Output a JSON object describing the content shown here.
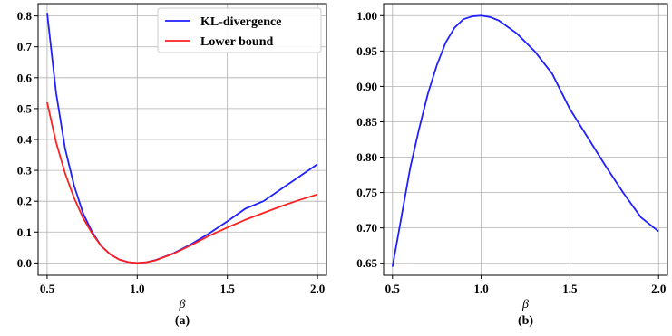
{
  "chart_data": [
    {
      "type": "line",
      "caption": "(a)",
      "xlabel": "β",
      "ylabel": "",
      "xlim": [
        0.45,
        2.05
      ],
      "ylim": [
        -0.04,
        0.84
      ],
      "xticks": [
        "0.5",
        "1.0",
        "1.5",
        "2.0"
      ],
      "yticks": [
        "0.0",
        "0.1",
        "0.2",
        "0.3",
        "0.4",
        "0.5",
        "0.6",
        "0.7",
        "0.8"
      ],
      "grid": true,
      "legend_position": "top-right",
      "x": [
        0.5,
        0.55,
        0.6,
        0.65,
        0.7,
        0.75,
        0.8,
        0.85,
        0.9,
        0.95,
        1.0,
        1.05,
        1.1,
        1.2,
        1.3,
        1.4,
        1.5,
        1.6,
        1.7,
        1.8,
        1.9,
        2.0
      ],
      "series": [
        {
          "name": "KL-divergence",
          "color": "#1f1fff",
          "values": [
            0.81,
            0.55,
            0.37,
            0.25,
            0.16,
            0.1,
            0.055,
            0.028,
            0.011,
            0.0025,
            0.0,
            0.0022,
            0.009,
            0.031,
            0.061,
            0.096,
            0.135,
            0.176,
            0.2,
            0.24,
            0.28,
            0.32
          ]
        },
        {
          "name": "Lower bound",
          "color": "#ff2020",
          "values": [
            0.52,
            0.39,
            0.29,
            0.21,
            0.145,
            0.095,
            0.055,
            0.028,
            0.011,
            0.0025,
            0.0,
            0.0022,
            0.008,
            0.03,
            0.058,
            0.088,
            0.115,
            0.14,
            0.162,
            0.184,
            0.204,
            0.222
          ]
        }
      ]
    },
    {
      "type": "line",
      "caption": "(b)",
      "xlabel": "β",
      "ylabel": "",
      "xlim": [
        0.45,
        2.05
      ],
      "ylim": [
        0.633,
        1.017
      ],
      "xticks": [
        "0.5",
        "1.0",
        "1.5",
        "2.0"
      ],
      "yticks": [
        "0.65",
        "0.70",
        "0.75",
        "0.80",
        "0.85",
        "0.90",
        "0.95",
        "1.00"
      ],
      "grid": true,
      "x": [
        0.5,
        0.55,
        0.6,
        0.65,
        0.7,
        0.75,
        0.8,
        0.85,
        0.9,
        0.95,
        1.0,
        1.05,
        1.1,
        1.2,
        1.3,
        1.4,
        1.5,
        1.6,
        1.7,
        1.8,
        1.9,
        2.0
      ],
      "series": [
        {
          "color": "#1f1fff",
          "values": [
            0.645,
            0.715,
            0.785,
            0.84,
            0.89,
            0.93,
            0.962,
            0.983,
            0.995,
            0.999,
            1.0,
            0.998,
            0.993,
            0.975,
            0.95,
            0.918,
            0.868,
            0.828,
            0.788,
            0.75,
            0.715,
            0.695
          ]
        }
      ]
    }
  ]
}
